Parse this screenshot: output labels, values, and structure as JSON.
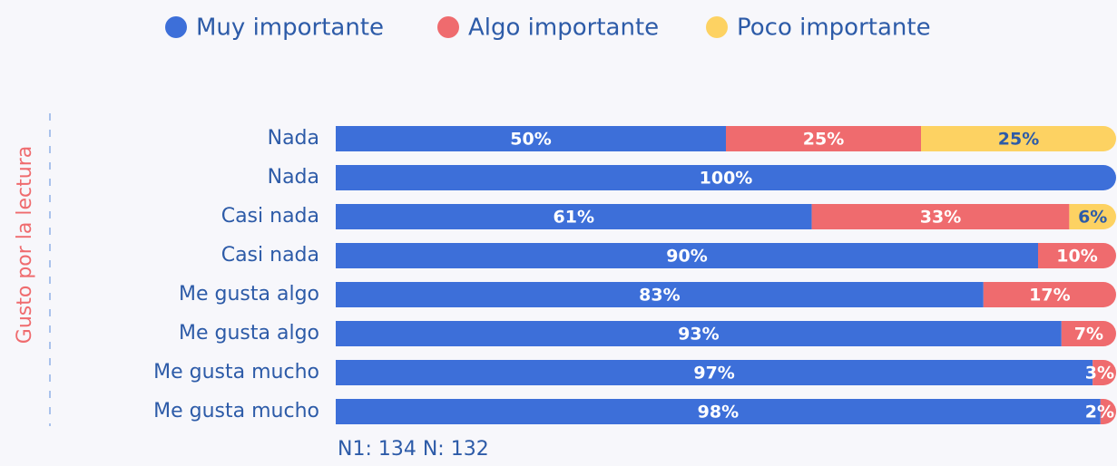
{
  "chart_data": {
    "type": "stacked-bar-horizontal",
    "axis_label": "Gusto por la lectura",
    "note": "N1: 134  N: 132",
    "categories": [
      "Nada",
      "Nada",
      "Casi nada",
      "Casi nada",
      "Me gusta algo",
      "Me gusta algo",
      "Me gusta mucho",
      "Me gusta mucho"
    ],
    "xlim": [
      0,
      100
    ],
    "legend": "top",
    "series": [
      {
        "name": "Muy importante",
        "color": "#3d6fd9",
        "label_color": "#ffffff",
        "values": [
          50,
          100,
          61,
          90,
          83,
          93,
          97,
          98
        ],
        "value_labels": [
          "50%",
          "100%",
          "61%",
          "90%",
          "83%",
          "93%",
          "97%",
          "98%"
        ]
      },
      {
        "name": "Algo importante",
        "color": "#ef6b6e",
        "label_color": "#ffffff",
        "values": [
          25,
          0,
          33,
          10,
          17,
          7,
          3,
          2
        ],
        "value_labels": [
          "25%",
          null,
          "33%",
          "10%",
          "17%",
          "7%",
          "3%",
          "2%"
        ]
      },
      {
        "name": "Poco importante",
        "color": "#fdd262",
        "label_color": "#2d5ba8",
        "values": [
          25,
          0,
          6,
          0,
          0,
          0,
          0,
          0
        ],
        "value_labels": [
          "25%",
          null,
          "6%",
          null,
          null,
          null,
          null,
          null
        ]
      }
    ]
  }
}
